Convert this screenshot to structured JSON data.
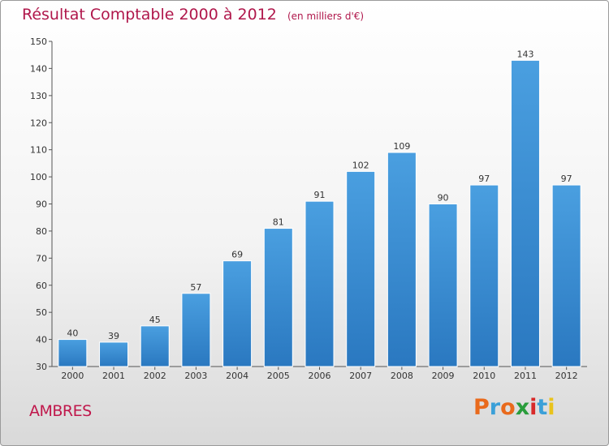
{
  "header": {
    "title": "Résultat Comptable 2000 à 2012",
    "subtitle": "(en milliers d'€)"
  },
  "footer": {
    "commune": "AMBRES",
    "logo": "Proxiti",
    "logo_colors": [
      "#e96a1c",
      "#3ba0d8",
      "#e96a1c",
      "#2a9d3c",
      "#d82a2a",
      "#3ba0d8",
      "#e9c31c"
    ]
  },
  "chart_data": {
    "type": "bar",
    "title": "Résultat Comptable 2000 à 2012",
    "subtitle": "(en milliers d'€)",
    "xlabel": "",
    "ylabel": "",
    "categories": [
      "2000",
      "2001",
      "2002",
      "2003",
      "2004",
      "2005",
      "2006",
      "2007",
      "2008",
      "2009",
      "2010",
      "2011",
      "2012"
    ],
    "values": [
      40,
      39,
      45,
      57,
      69,
      81,
      91,
      102,
      109,
      90,
      97,
      143,
      97
    ],
    "ylim": [
      30,
      150
    ],
    "yticks": [
      30,
      40,
      50,
      60,
      70,
      80,
      90,
      100,
      110,
      120,
      130,
      140,
      150
    ],
    "grid": false,
    "legend": "none",
    "bar_color": "#4a9fe0",
    "bar_color_dark": "#2a78c0"
  }
}
